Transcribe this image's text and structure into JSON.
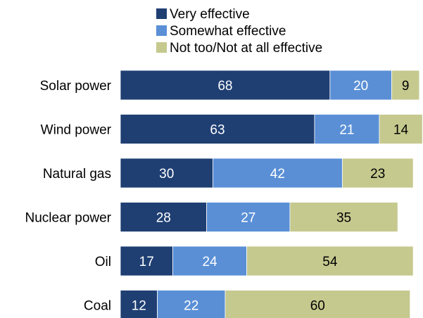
{
  "chart_data": {
    "type": "bar",
    "orientation": "horizontal",
    "stacked": true,
    "categories": [
      "Solar power",
      "Wind power",
      "Natural gas",
      "Nuclear power",
      "Oil",
      "Coal"
    ],
    "series": [
      {
        "name": "Very effective",
        "color": "#1f3f73",
        "label_color": "#ffffff",
        "values": [
          68,
          63,
          30,
          28,
          17,
          12
        ]
      },
      {
        "name": "Somewhat effective",
        "color": "#5a8fd6",
        "label_color": "#ffffff",
        "values": [
          20,
          21,
          42,
          27,
          24,
          22
        ]
      },
      {
        "name": "Not too/Not at all effective",
        "color": "#c5c98e",
        "label_color": "#000000",
        "values": [
          9,
          14,
          23,
          35,
          54,
          60
        ]
      }
    ],
    "title": "",
    "xlabel": "",
    "ylabel": "",
    "xlim": [
      0,
      100
    ],
    "grid": false,
    "legend_position": "top"
  }
}
